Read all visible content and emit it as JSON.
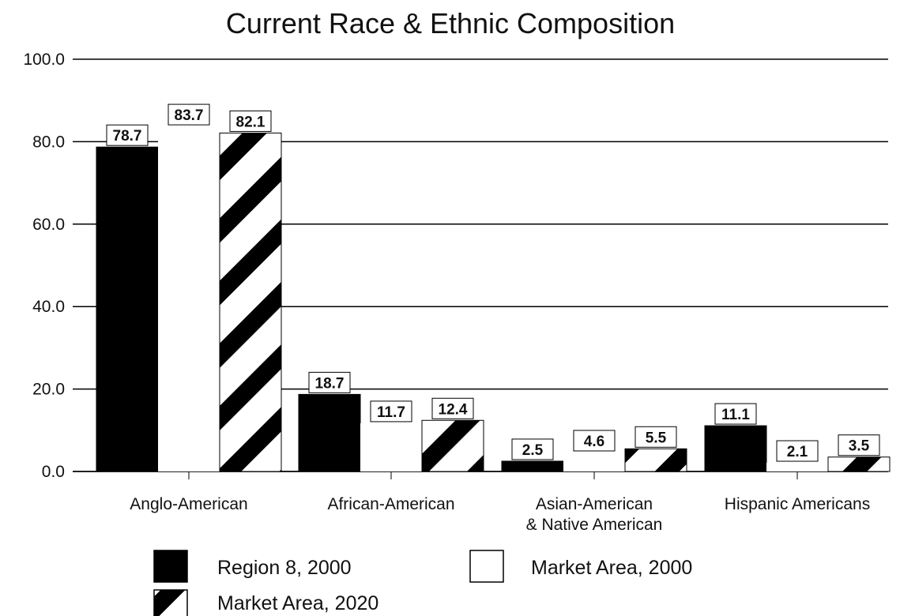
{
  "chart_data": {
    "type": "bar",
    "title": "Current Race & Ethnic Composition",
    "categories": [
      [
        "Anglo-American"
      ],
      [
        "African-American"
      ],
      [
        "Asian-American",
        "& Native American"
      ],
      [
        "Hispanic Americans"
      ]
    ],
    "series": [
      {
        "name": "Region 8, 2000",
        "values": [
          78.7,
          18.7,
          2.5,
          11.1
        ],
        "fill": "solid",
        "color": "#000000"
      },
      {
        "name": "Market Area, 2000",
        "values": [
          83.7,
          11.7,
          4.6,
          2.1
        ],
        "fill": "empty",
        "color": "#ffffff"
      },
      {
        "name": "Market Area, 2020",
        "values": [
          82.1,
          12.4,
          5.5,
          3.5
        ],
        "fill": "diagonal-stripes",
        "color": "#000000"
      }
    ],
    "value_labels": [
      [
        "78.7",
        "18.7",
        "2.5",
        "11.1"
      ],
      [
        "83.7",
        "11.7",
        "4.6",
        "2.1"
      ],
      [
        "82.1",
        "12.4",
        "5.5",
        "3.5"
      ]
    ],
    "y_ticks": [
      "0.0",
      "20.0",
      "40.0",
      "60.0",
      "80.0",
      "100.0"
    ],
    "ylim": [
      0,
      100
    ],
    "grid": true,
    "legend_position": "bottom"
  }
}
